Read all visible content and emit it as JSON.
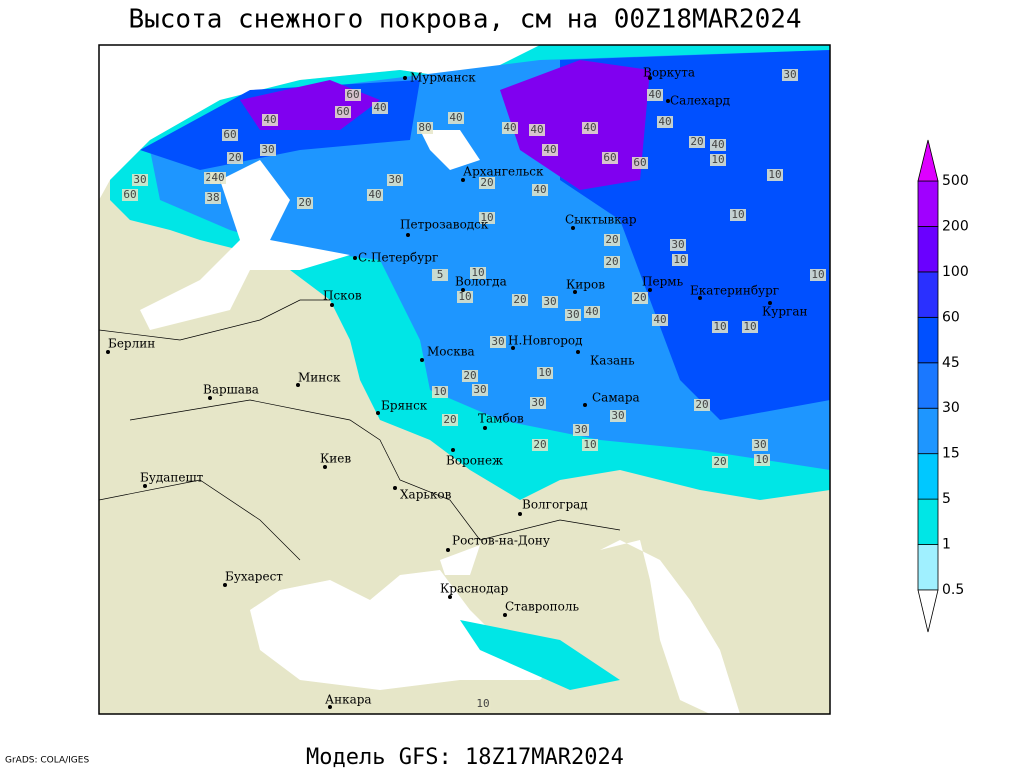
{
  "title": "Высота снежного покрова, см на 00Z18MAR2024",
  "subtitle": "Модель GFS: 18Z17MAR2024",
  "credit": "GrADS: COLA/IGES",
  "legend": {
    "levels": [
      0.5,
      1,
      5,
      15,
      30,
      45,
      60,
      100,
      200,
      500
    ],
    "colors": [
      "#a0f0ff",
      "#00e6e6",
      "#00c8ff",
      "#1e96ff",
      "#1a78ff",
      "#0050ff",
      "#2a30ff",
      "#6a00ff",
      "#a000ff"
    ],
    "under_color": "#ffffff",
    "over_color": "#dd00ff"
  },
  "cities": [
    "Мурманск",
    "Воркута",
    "Салехард",
    "Архангельск",
    "Петрозаводск",
    "Сыктывкар",
    "С.Петербург",
    "Вологда",
    "Киров",
    "Пермь",
    "Екатеринбург",
    "Курган",
    "Псков",
    "Берлин",
    "Н.Новгород",
    "Москва",
    "Казань",
    "Минск",
    "Варшава",
    "Самара",
    "Брянск",
    "Тамбов",
    "Воронеж",
    "Киев",
    "Будапешт",
    "Харьков",
    "Волгоград",
    "Ростов-на-Дону",
    "Бухарест",
    "Краснодар",
    "Ставрополь",
    "Анкара"
  ],
  "contour_labels": [
    40,
    60,
    60,
    40,
    60,
    20,
    30,
    20,
    30,
    40,
    38,
    60,
    30,
    40,
    20,
    80,
    40,
    40,
    40,
    40,
    40,
    60,
    60,
    40,
    20,
    40,
    20,
    40,
    10,
    30,
    10,
    10,
    10,
    40,
    20,
    20,
    30,
    10,
    5,
    10,
    10,
    20,
    30,
    30,
    40,
    20,
    40,
    10,
    10,
    30,
    20,
    30,
    10,
    20,
    30,
    10,
    30,
    30,
    10,
    20,
    20,
    30,
    20,
    10,
    10,
    10
  ]
}
